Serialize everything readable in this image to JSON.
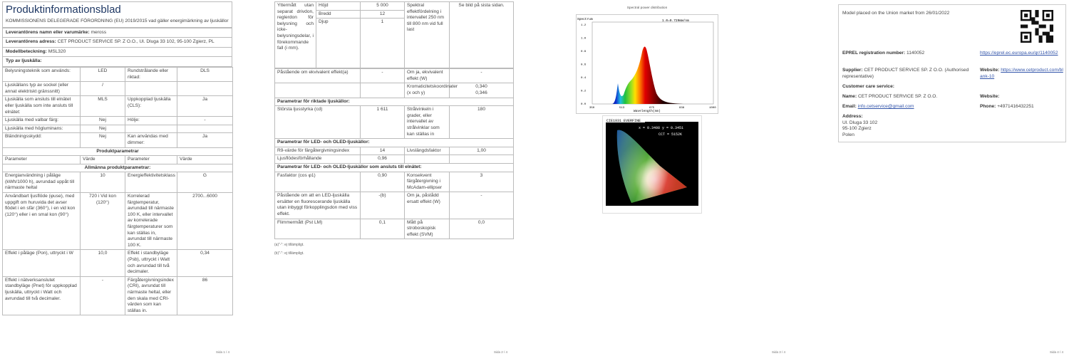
{
  "page1": {
    "title": "Produktinformationsblad",
    "regulation": "KOMMISSIONENS DELEGERADE FÖRORDNING (EU) 2019/2015 vad gäller energimärkning av ljuskällor",
    "meta": [
      {
        "label": "Leverantörens namn eller varumärke:",
        "value": "meross"
      },
      {
        "label": "Leverantörens adress:",
        "value": "CET PRODUCT SERVICE SP. Z O.O., Ul. Dluga 33 102, 95-100 Zgierz, PL"
      },
      {
        "label": "Modellbeteckning:",
        "value": "MSL320"
      },
      {
        "label": "Typ av ljuskälla:",
        "value": ""
      }
    ],
    "rows": [
      {
        "cells": [
          "Belysningsteknik som används:",
          "LED",
          "Rundstrålande eller riktad:",
          "DLS"
        ]
      },
      {
        "cells": [
          "Ljuskällans typ av sockel (eller annat elektriskt gränssnitt)",
          "/",
          "",
          ""
        ]
      },
      {
        "cells": [
          "Ljuskälla som ansluts till elnätet eller ljuskälla som inte ansluts till elnätet:",
          "MLS",
          "Uppkopplad ljuskälla (CLS):",
          "Ja"
        ]
      },
      {
        "cells": [
          "Ljuskälla med valbar färg:",
          "Nej",
          "Hölje:",
          "-"
        ]
      },
      {
        "cells": [
          "Ljuskälla med högluminans:",
          "Nej",
          "",
          ""
        ]
      },
      {
        "cells": [
          "Bländningsskydd:",
          "Nej",
          "Kan användas med dimmer:",
          "Ja"
        ]
      },
      {
        "type": "center",
        "cells": [
          "Produktparametrar"
        ]
      },
      {
        "type": "plain",
        "cells": [
          "Parameter",
          "Värde",
          "Parameter",
          "Värde"
        ]
      },
      {
        "type": "center",
        "cells": [
          "Allmänna produktparametrar:"
        ]
      },
      {
        "cells": [
          "Energianvändning i påläge (kWh/1000 h), avrundad uppåt till närmaste heltal",
          "10",
          "Energieffektivitetsklass",
          "G"
        ]
      },
      {
        "cells": [
          "Användbart ljusflöde (φuse), med uppgift om huruvida det avser flödet i en sfär (360°), i en vid kon (120°) eller i en smal kon (90°)",
          "720 i Vid kon (120°)",
          "Korrelerad färgtemperatur, avrundad till närmaste 100 K, eller intervallet av korrelerade färgtemperaturer som kan ställas in, avrundat till närmaste 100 K.",
          "2700...6000"
        ]
      },
      {
        "cells": [
          "Effekt i påläge (Pon), uttryckt i W",
          "10,0",
          "Effekt i standbyläge (Psb), uttryckt i Watt och avrundad till två decimaler.",
          "0,34"
        ]
      },
      {
        "cells": [
          "Effekt i nätverksanslutet standbyläge (Pnet) för uppkopplad ljuskälla, uttryckt i Watt och avrundad till två decimaler.",
          "-",
          "Färgåtergivningsindex (CRI), avrundat till närmaste heltal, eller den skala med CRI-värden som kan ställas in.",
          "86"
        ]
      }
    ],
    "page_number": "Sida 1 / 4"
  },
  "page2": {
    "dims": {
      "label": "Yttermått utan separat drivdon, reglerdon för belysning och icke-belysningsdelar, i förekommande fall (i mm).",
      "items": [
        {
          "name": "Höjd",
          "value": "5 000"
        },
        {
          "name": "Bredd",
          "value": "12"
        },
        {
          "name": "Djup",
          "value": "1"
        }
      ],
      "spectral_label": "Spektral effektfördelning i intervallet 250 nm till 800 nm vid full last",
      "spectral_value": "Se bild på sista sidan."
    },
    "rows": [
      {
        "cells": [
          "Påstående om ekvivalent effekt(a)",
          "-",
          "Om ja, ekvivalent effekt (W)",
          "-"
        ]
      },
      {
        "cells": [
          "",
          "",
          "Kromaticitetskoordinater (x och y)",
          "0,340\n0,346"
        ]
      },
      {
        "type": "section",
        "cells": [
          "Parametrar för riktade ljuskällor:"
        ]
      },
      {
        "cells": [
          "Största ljusstyrka (cd)",
          "1 611",
          "Strålvinkeln i grader, eller intervallet av strålvinklar som kan ställas in",
          "180"
        ]
      },
      {
        "type": "section",
        "cells": [
          "Parametrar för LED- och OLED-ljuskällor:"
        ]
      },
      {
        "cells": [
          "R9-värde för färgåtergivningsindex",
          "14",
          "Livslängdsfaktor",
          "1,00"
        ]
      },
      {
        "cells": [
          "Ljusflödesförhållande",
          "0,96",
          "",
          ""
        ]
      },
      {
        "type": "section",
        "cells": [
          "Parametrar för LED- och OLED-ljuskällor som ansluts till elnätet:"
        ]
      },
      {
        "cells": [
          "Fasfaktor (cos φ1)",
          "0,90",
          "Konsekvent färgåtergivning i McAdam-ellipser",
          "3"
        ]
      },
      {
        "cells": [
          "Påstående om att en LED-ljuskälla ersätter en fluorescerande ljuskälla utan inbyggt förkopplingsdon med viss effekt.",
          "-(b)",
          "Om ja, påstådd ersatt effekt (W)",
          "-"
        ]
      },
      {
        "cells": [
          "Flimmermått (Pst LM)",
          "0,1",
          "Mått på stroboskopisk effekt (SVM)",
          "0,0"
        ]
      }
    ],
    "footnotes": [
      "(a)\"-\": ej tillämpligt.",
      "(b)\"-\": ej tillämpligt."
    ],
    "page_number": "Sida 2 / 4"
  },
  "page3": {
    "spectrum": {
      "title": "Spectral power distribution",
      "ylabel": "Spectrum",
      "note": "1.0=0.729mW/nm",
      "xlabel": "Wavelength(nm)",
      "xticks": [
        "350",
        "513",
        "675",
        "838",
        "1000"
      ],
      "yticks": [
        "0.0",
        "0.2",
        "0.4",
        "0.6",
        "0.8",
        "1.0",
        "1.2"
      ]
    },
    "cie": {
      "title": "CIE1931 EVERFINE",
      "coords": "x = 0.3408 y = 0.3451",
      "cct": "CCT = 5152K"
    },
    "page_number": "Sida 3 / 4"
  },
  "page4": {
    "market": "Model placed on the Union market from 26/01/2022",
    "eprel_label": "EPREL registration number:",
    "eprel_value": "1140052",
    "eprel_link": "https://eprel.ec.europa.eu/qr/1140052",
    "supplier_label": "Supplier:",
    "supplier_value": "CET PRODUCT SERVICE SP. Z O.O. (Authorised representative)",
    "website_label": "Website:",
    "website_link": "https://www.cetproduct.com/blank-10",
    "care_label": "Customer care service:",
    "name_label": "Name:",
    "name_value": "CET PRODUCT SERVICE SP. Z O.O.",
    "website2_label": "Website:",
    "email_label": "Email:",
    "email_value": "info.cetservice@gmail.com",
    "phone_label": "Phone:",
    "phone_value": "+4971416432251",
    "address_label": "Address:",
    "address_lines": [
      "Ul. Dluga 33 102",
      "95-100 Zgierz",
      "Polen"
    ],
    "page_number": "Sida 4 / 4"
  }
}
